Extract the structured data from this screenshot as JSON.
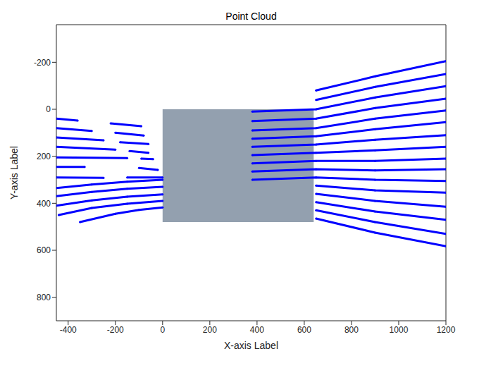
{
  "chart_data": {
    "type": "scatter",
    "title": "Point Cloud",
    "x_label": "X-axis Label",
    "y_label": "Y-axis Label",
    "xlim": [
      -450,
      1200
    ],
    "ylim": [
      -360,
      900
    ],
    "xticks": [
      -400,
      -200,
      0,
      200,
      400,
      600,
      800,
      1000,
      1200
    ],
    "yticks": [
      -200,
      0,
      200,
      400,
      600,
      800
    ],
    "color": "#0000ff",
    "marker": ".",
    "image": {
      "xlim": [
        0,
        640
      ],
      "ylim": [
        0,
        480
      ]
    },
    "series": [
      {
        "x": [
          650,
          900,
          1200
        ],
        "values": [
          -80,
          -140,
          -205
        ]
      },
      {
        "x": [
          650,
          900,
          1200
        ],
        "values": [
          -40,
          -95,
          -150
        ]
      },
      {
        "x": [
          380,
          650,
          900,
          1200
        ],
        "values": [
          10,
          0,
          -50,
          -98
        ]
      },
      {
        "x": [
          380,
          650,
          900,
          1200
        ],
        "values": [
          50,
          40,
          -5,
          -45
        ]
      },
      {
        "x": [
          380,
          650,
          900,
          1200
        ],
        "values": [
          90,
          80,
          40,
          5
        ]
      },
      {
        "x": [
          380,
          650,
          900,
          1200
        ],
        "values": [
          125,
          115,
          85,
          55
        ]
      },
      {
        "x": [
          380,
          650,
          900,
          1200
        ],
        "values": [
          160,
          150,
          130,
          110
        ]
      },
      {
        "x": [
          380,
          650,
          900,
          1200
        ],
        "values": [
          195,
          185,
          175,
          160
        ]
      },
      {
        "x": [
          380,
          650,
          900,
          1200
        ],
        "values": [
          230,
          220,
          220,
          210
        ]
      },
      {
        "x": [
          380,
          650,
          900,
          1200
        ],
        "values": [
          265,
          255,
          260,
          255
        ]
      },
      {
        "x": [
          380,
          650,
          900,
          1200
        ],
        "values": [
          300,
          290,
          300,
          305
        ]
      },
      {
        "x": [
          650,
          900,
          1200
        ],
        "values": [
          325,
          345,
          355
        ]
      },
      {
        "x": [
          650,
          900,
          1200
        ],
        "values": [
          360,
          390,
          415
        ]
      },
      {
        "x": [
          650,
          900,
          1200
        ],
        "values": [
          395,
          435,
          470
        ]
      },
      {
        "x": [
          650,
          900,
          1200
        ],
        "values": [
          430,
          480,
          530
        ]
      },
      {
        "x": [
          650,
          900,
          1200
        ],
        "values": [
          465,
          525,
          583
        ]
      },
      {
        "x": [
          -450,
          -360,
          -330,
          -220,
          -90
        ],
        "values": [
          40,
          48,
          null,
          60,
          72
        ]
      },
      {
        "x": [
          -450,
          -300,
          -260,
          -200,
          -80
        ],
        "values": [
          80,
          92,
          null,
          100,
          112
        ]
      },
      {
        "x": [
          -450,
          -250,
          -220,
          -180,
          -60
        ],
        "values": [
          120,
          132,
          null,
          140,
          148
        ]
      },
      {
        "x": [
          -450,
          -200,
          -170,
          -140,
          -60
        ],
        "values": [
          160,
          172,
          null,
          178,
          185
        ]
      },
      {
        "x": [
          -450,
          -150,
          -120,
          -90,
          -40
        ],
        "values": [
          205,
          208,
          null,
          210,
          212
        ]
      },
      {
        "x": [
          -450,
          -330,
          -300,
          -100,
          -20
        ],
        "values": [
          245,
          245,
          null,
          250,
          258
        ]
      },
      {
        "x": [
          -450,
          -250,
          -220,
          -150,
          0
        ],
        "values": [
          290,
          292,
          null,
          290,
          290
        ]
      },
      {
        "x": [
          -450,
          -300,
          -150,
          0
        ],
        "values": [
          335,
          320,
          308,
          300
        ]
      },
      {
        "x": [
          -450,
          -300,
          -150,
          0
        ],
        "values": [
          370,
          352,
          338,
          330
        ]
      },
      {
        "x": [
          -450,
          -300,
          -150,
          0
        ],
        "values": [
          410,
          388,
          372,
          362
        ]
      },
      {
        "x": [
          -440,
          -300,
          -150,
          0
        ],
        "values": [
          450,
          420,
          402,
          390
        ]
      },
      {
        "x": [
          -350,
          -200,
          -100,
          0
        ],
        "values": [
          480,
          445,
          428,
          418
        ]
      }
    ]
  }
}
